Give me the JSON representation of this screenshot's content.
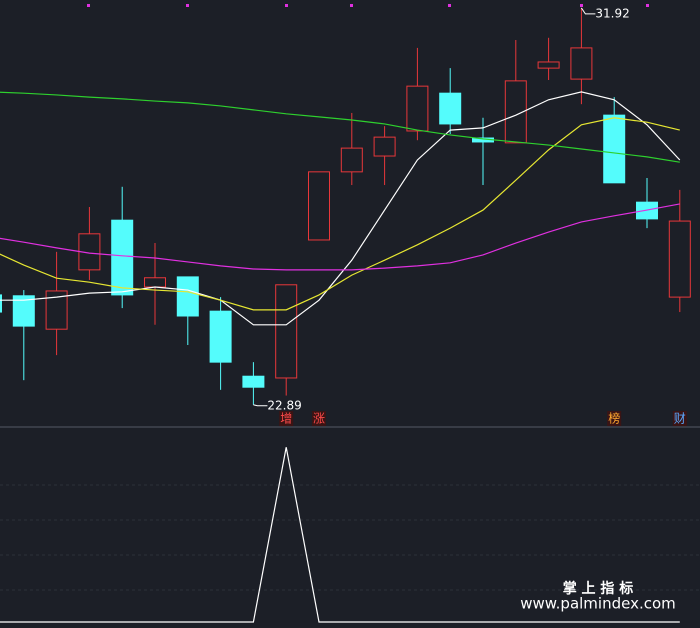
{
  "chart_data": [
    {
      "type": "candlestick",
      "ylim": [
        22.43,
        32.1
      ],
      "up_color": "#e8373a",
      "down_color": "#54fcfc",
      "open": [
        25.39,
        25.37,
        24.61,
        25.96,
        27.09,
        25.57,
        25.8,
        25.02,
        23.54,
        23.5,
        26.64,
        28.19,
        28.55,
        29.12,
        29.98,
        28.96,
        28.85,
        30.55,
        30.3,
        29.48,
        27.5,
        25.34
      ],
      "high": [
        25.43,
        25.5,
        26.37,
        27.39,
        27.85,
        26.57,
        25.8,
        25.34,
        23.86,
        25.62,
        28.19,
        29.53,
        29.23,
        31.01,
        30.55,
        29.42,
        31.19,
        31.24,
        31.92,
        29.89,
        28.05,
        27.78
      ],
      "low": [
        25.0,
        23.45,
        24.02,
        25.73,
        25.09,
        24.71,
        24.25,
        23.23,
        22.89,
        23.1,
        26.64,
        27.89,
        27.89,
        28.91,
        29.05,
        27.89,
        28.85,
        30.28,
        29.73,
        27.94,
        26.91,
        25.0
      ],
      "close": [
        25.0,
        24.68,
        25.48,
        26.78,
        25.39,
        25.78,
        24.91,
        23.86,
        23.29,
        25.62,
        28.19,
        28.73,
        28.98,
        30.14,
        29.28,
        28.87,
        30.26,
        30.69,
        31.01,
        27.94,
        27.12,
        27.07
      ],
      "series": [
        {
          "color": "#ffffff",
          "values": [
            25.27,
            25.27,
            25.34,
            25.43,
            25.46,
            25.57,
            25.5,
            25.27,
            24.71,
            24.71,
            25.27,
            26.18,
            27.32,
            28.46,
            29.14,
            29.19,
            29.48,
            29.83,
            30.01,
            29.83,
            29.26,
            28.46
          ]
        },
        {
          "color": "#e6e632",
          "values": [
            26.41,
            26.07,
            25.77,
            25.68,
            25.55,
            25.5,
            25.46,
            25.27,
            25.05,
            25.05,
            25.39,
            25.84,
            26.18,
            26.53,
            26.91,
            27.32,
            28.0,
            28.69,
            29.26,
            29.42,
            29.32,
            29.14
          ]
        },
        {
          "color": "#e030e0",
          "values": [
            26.71,
            26.59,
            26.46,
            26.34,
            26.28,
            26.23,
            26.14,
            26.05,
            25.98,
            25.96,
            25.96,
            25.96,
            26.0,
            26.05,
            26.12,
            26.3,
            26.57,
            26.82,
            27.05,
            27.19,
            27.32,
            27.46
          ]
        },
        {
          "color": "#2ed02e",
          "values": [
            30.01,
            29.98,
            29.94,
            29.89,
            29.85,
            29.8,
            29.76,
            29.69,
            29.6,
            29.51,
            29.44,
            29.37,
            29.28,
            29.14,
            29.03,
            28.94,
            28.87,
            28.8,
            28.71,
            28.62,
            28.53,
            28.41
          ]
        }
      ],
      "signals": [
        null,
        null,
        null,
        null,
        null,
        null,
        null,
        null,
        null,
        "增",
        "涨",
        null,
        null,
        null,
        null,
        null,
        null,
        null,
        null,
        "榜",
        null,
        "财"
      ],
      "signal_colors": [
        null,
        null,
        null,
        null,
        null,
        null,
        null,
        null,
        null,
        "#ff4a4a",
        "#ff4a4a",
        null,
        null,
        null,
        null,
        null,
        null,
        null,
        null,
        "#ffa830",
        null,
        "#5aa8ff"
      ],
      "annotations": [
        31.92,
        22.89
      ]
    },
    {
      "type": "line",
      "ylim": [
        0,
        1.11
      ],
      "series": [
        {
          "color": "#ffffff",
          "values": [
            0,
            0,
            0,
            0,
            0,
            0,
            0,
            0,
            0,
            1,
            0,
            0,
            0,
            0,
            0,
            0,
            0,
            0,
            0,
            0,
            0,
            0
          ]
        }
      ]
    }
  ],
  "watermark": {
    "title": "掌 上 指 标",
    "url": "www.palmindex.com"
  }
}
